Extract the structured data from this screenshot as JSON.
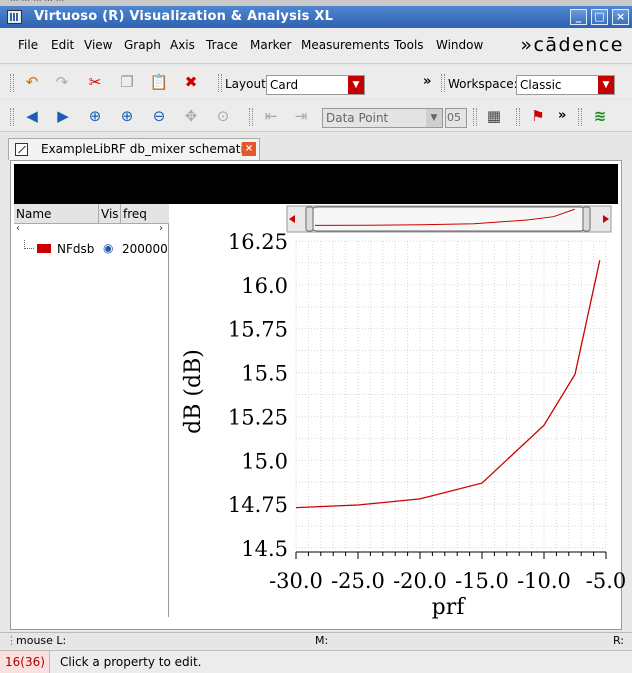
{
  "window": {
    "title": "Virtuoso (R) Visualization & Analysis XL",
    "top_strip_text": "... ... ... ... ..."
  },
  "menubar": {
    "items": [
      "File",
      "Edit",
      "View",
      "Graph",
      "Axis",
      "Trace",
      "Marker",
      "Measurements",
      "Tools",
      "Window"
    ],
    "brand": "»cādence"
  },
  "toolbar1": {
    "layout_label": "Layout:",
    "layout_value": "Card",
    "workspace_label": "Workspace:",
    "workspace_value": "Classic",
    "more": "»"
  },
  "toolbar2": {
    "marker_type": "Data Point",
    "marker_index": "05",
    "more": "»"
  },
  "tab": {
    "label": "ExampleLibRF db_mixer schematic"
  },
  "legend": {
    "headers": [
      "Name",
      "Vis",
      "freq"
    ],
    "trace_name": "NFdsb",
    "trace_freq": "200000"
  },
  "colors": {
    "trace": "#cc0000",
    "titlebar": "#2f62b1"
  },
  "chart_data": {
    "type": "line",
    "xlabel": "prf",
    "ylabel": "dB (dB)",
    "xlim": [
      -30.0,
      -5.0
    ],
    "ylim": [
      14.5,
      16.25
    ],
    "x_ticks": [
      "-30.0",
      "-25.0",
      "-20.0",
      "-15.0",
      "-10.0",
      "-5.0"
    ],
    "y_ticks": [
      "16.25",
      "16.0",
      "15.75",
      "15.5",
      "15.25",
      "15.0",
      "14.75",
      "14.5"
    ],
    "grid": true,
    "series": [
      {
        "name": "NFdsb",
        "x": [
          -30,
          -25,
          -20,
          -15,
          -10,
          -7.5,
          -5.5
        ],
        "y": [
          14.73,
          14.745,
          14.78,
          14.87,
          15.2,
          15.49,
          16.14
        ]
      }
    ]
  },
  "status": {
    "mouse_left": "mouse L:",
    "mouse_mid": "M:",
    "mouse_right": "R:",
    "count": "16(36)",
    "message": "Click a property to edit."
  }
}
